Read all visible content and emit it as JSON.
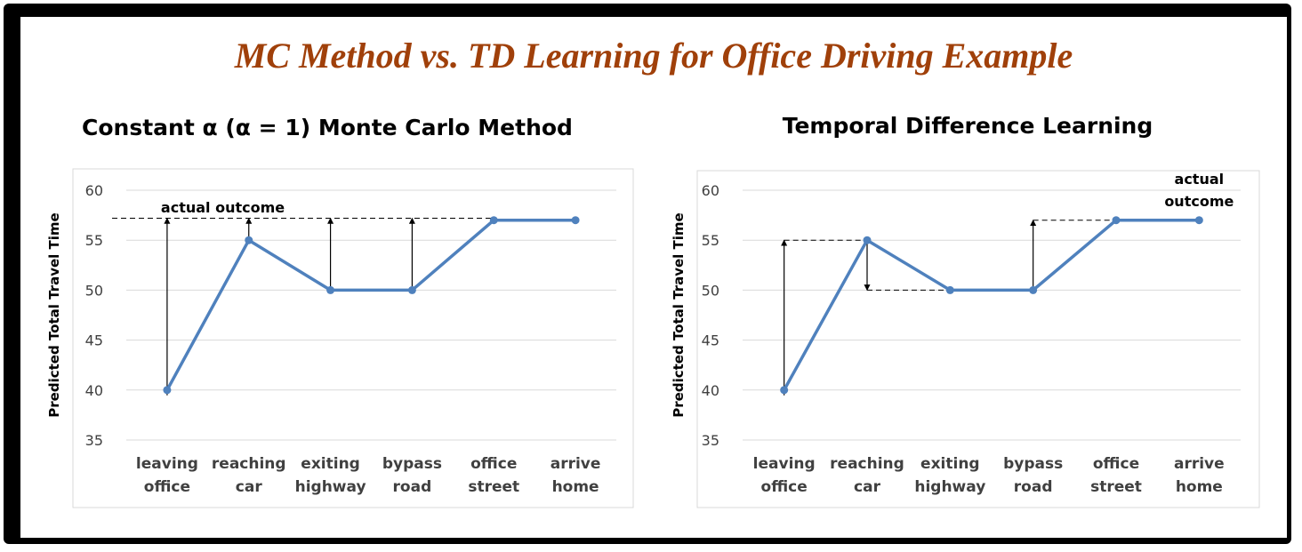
{
  "title": "MC Method vs. TD Learning for Office Driving Example",
  "colors": {
    "title": "#a0400a",
    "line": "#4f81bd",
    "grid": "#d9d9d9",
    "frame": "#000000"
  },
  "chart_data": [
    {
      "type": "line",
      "title": "Constant α (α = 1) Monte Carlo Method",
      "xlabel": "",
      "ylabel": "Predicted Total Travel Time",
      "categories": [
        [
          "leaving",
          "office"
        ],
        [
          "reaching",
          "car"
        ],
        [
          "exiting",
          "highway"
        ],
        [
          "bypass",
          "road"
        ],
        [
          "office",
          "street"
        ],
        [
          "arrive",
          "home"
        ]
      ],
      "values": [
        40,
        55,
        50,
        50,
        57,
        57
      ],
      "ylim": [
        35,
        60
      ],
      "yticks": [
        35,
        40,
        45,
        50,
        55,
        60
      ],
      "grid": true,
      "legend": "none",
      "annotation": {
        "label": [
          "actual outcome"
        ],
        "target_value": 57.2,
        "arrows_from": [
          0,
          1,
          2,
          3
        ]
      }
    },
    {
      "type": "line",
      "title": "Temporal Difference Learning",
      "xlabel": "",
      "ylabel": "Predicted Total Travel Time",
      "categories": [
        [
          "leaving",
          "office"
        ],
        [
          "reaching",
          "car"
        ],
        [
          "exiting",
          "highway"
        ],
        [
          "bypass",
          "road"
        ],
        [
          "office",
          "street"
        ],
        [
          "arrive",
          "home"
        ]
      ],
      "values": [
        40,
        55,
        50,
        50,
        57,
        57
      ],
      "ylim": [
        35,
        60
      ],
      "yticks": [
        35,
        40,
        45,
        50,
        55,
        60
      ],
      "grid": true,
      "legend": "none",
      "annotation": {
        "label": [
          "actual",
          "outcome"
        ],
        "td_arrows": [
          {
            "from": 0,
            "to_value": 55,
            "ref_from": 0,
            "ref_to": 1
          },
          {
            "from": 1,
            "to_value": 50,
            "ref_from": 1,
            "ref_to": 2
          },
          {
            "from": 3,
            "to_value": 57,
            "ref_from": 3,
            "ref_to": 4
          }
        ]
      }
    }
  ]
}
